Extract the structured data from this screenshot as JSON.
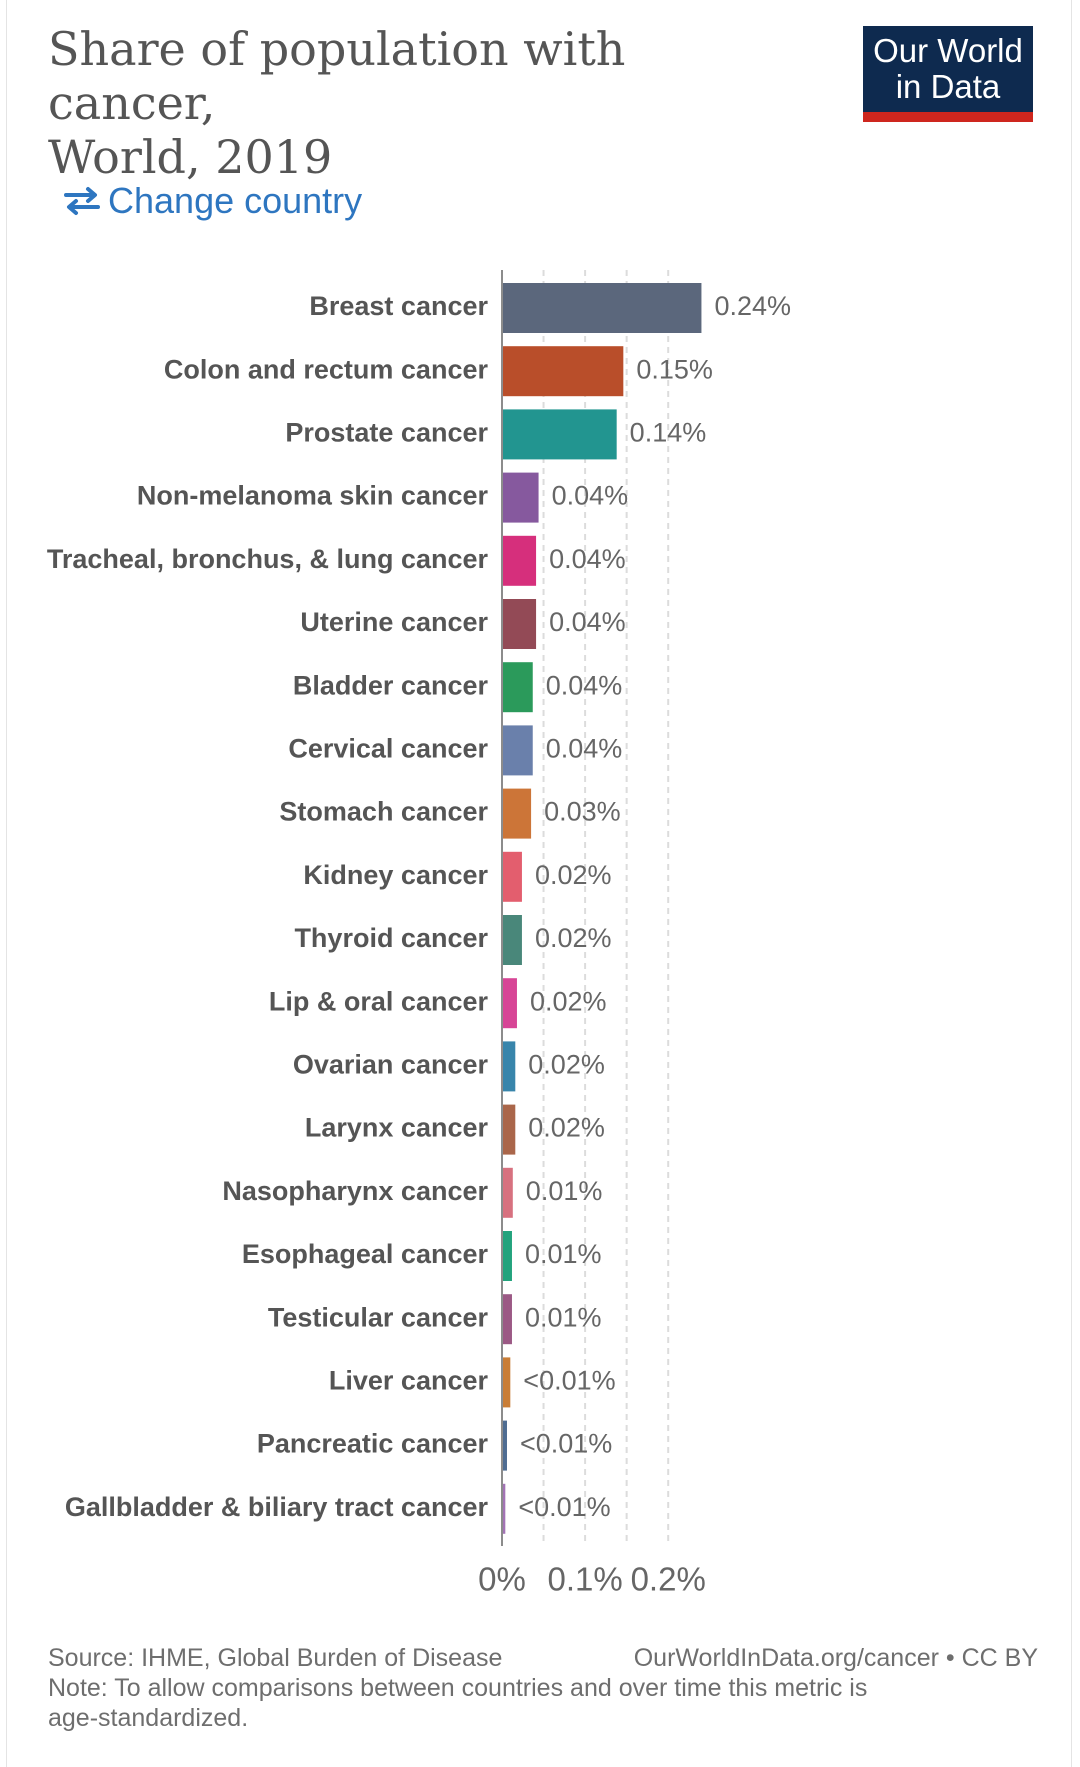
{
  "header": {
    "title_line1": "Share of population with cancer,",
    "title_line2": "World, 2019",
    "logo_line1": "Our World",
    "logo_line2": "in Data",
    "change_country_label": "Change country"
  },
  "chart_data": {
    "type": "bar",
    "orientation": "horizontal",
    "title": "Share of population with cancer, World, 2019",
    "xlabel": "",
    "ylabel": "",
    "xlim": [
      0,
      0.25
    ],
    "x_ticks": [
      0,
      0.1,
      0.2
    ],
    "x_tick_labels": [
      "0%",
      "0.1%",
      "0.2%"
    ],
    "grid": "vertical-dashed",
    "categories": [
      "Breast cancer",
      "Colon and rectum cancer",
      "Prostate cancer",
      "Non-melanoma skin cancer",
      "Tracheal, bronchus, & lung cancer",
      "Uterine cancer",
      "Bladder cancer",
      "Cervical cancer",
      "Stomach cancer",
      "Kidney cancer",
      "Thyroid cancer",
      "Lip & oral cancer",
      "Ovarian cancer",
      "Larynx cancer",
      "Nasopharynx cancer",
      "Esophageal cancer",
      "Testicular cancer",
      "Liver cancer",
      "Pancreatic cancer",
      "Gallbladder & biliary tract cancer"
    ],
    "values": [
      0.24,
      0.146,
      0.138,
      0.044,
      0.041,
      0.041,
      0.037,
      0.037,
      0.035,
      0.024,
      0.024,
      0.018,
      0.016,
      0.016,
      0.013,
      0.012,
      0.012,
      0.01,
      0.006,
      0.004
    ],
    "value_labels": [
      "0.24%",
      "0.15%",
      "0.14%",
      "0.04%",
      "0.04%",
      "0.04%",
      "0.04%",
      "0.04%",
      "0.03%",
      "0.02%",
      "0.02%",
      "0.02%",
      "0.02%",
      "0.02%",
      "0.01%",
      "0.01%",
      "0.01%",
      "<0.01%",
      "<0.01%",
      "<0.01%"
    ],
    "colors": [
      "#5b677c",
      "#b94e2a",
      "#229590",
      "#86599e",
      "#d62f7c",
      "#934a56",
      "#2b9a5b",
      "#6a80ab",
      "#cc7538",
      "#e35e6e",
      "#49877a",
      "#d74596",
      "#3885ab",
      "#aa664a",
      "#d7717f",
      "#23a37d",
      "#9b5985",
      "#c97d36",
      "#4f6d92",
      "#a374b5"
    ]
  },
  "footer": {
    "source": "Source: IHME, Global Burden of Disease",
    "url_license": "OurWorldInData.org/cancer • CC BY",
    "note_line1": "Note: To allow comparisons between countries and over time this metric is",
    "note_line2": "age-standardized."
  }
}
